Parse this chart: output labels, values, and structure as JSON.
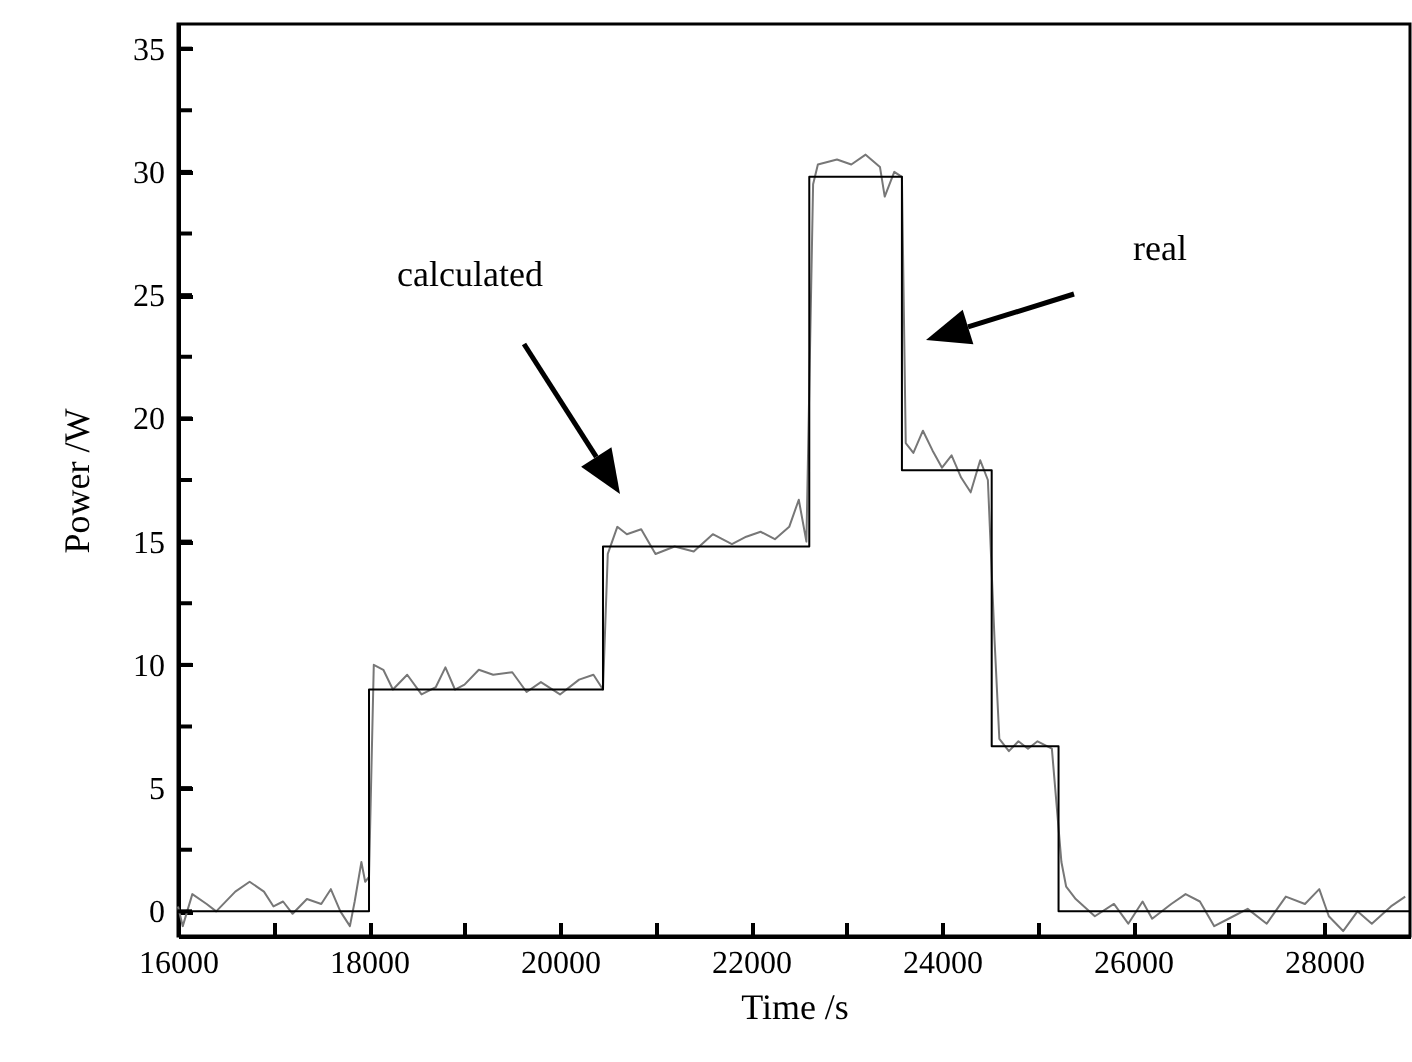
{
  "chart_data": {
    "type": "line",
    "xlabel": "Time /s",
    "ylabel": "Power /W",
    "xlim": [
      16000,
      28900
    ],
    "ylim": [
      -1,
      36
    ],
    "xticks": [
      16000,
      {
        "value": 17000,
        "label": null
      },
      18000,
      {
        "value": 19000,
        "label": null
      },
      20000,
      {
        "value": 21000,
        "label": null
      },
      22000,
      {
        "value": 23000,
        "label": null
      },
      24000,
      {
        "value": 25000,
        "label": null
      },
      26000,
      {
        "value": 27000,
        "label": null
      },
      28000
    ],
    "yticks": [
      0,
      {
        "value": 2.5,
        "label": null
      },
      5,
      {
        "value": 7.5,
        "label": null
      },
      10,
      {
        "value": 12.5,
        "label": null
      },
      15,
      {
        "value": 17.5,
        "label": null
      },
      20,
      {
        "value": 22.5,
        "label": null
      },
      25,
      {
        "value": 27.5,
        "label": null
      },
      30,
      {
        "value": 32.5,
        "label": null
      },
      35
    ],
    "grid": false,
    "marker": "none",
    "line_style": "solid",
    "series": [
      {
        "color": "#777777",
        "x": [
          16000,
          16050,
          16150,
          16300,
          16400,
          16600,
          16750,
          16900,
          17000,
          17100,
          17200,
          17350,
          17500,
          17600,
          17700,
          17800,
          17850,
          17920,
          17960,
          18000,
          18050,
          18150,
          18250,
          18400,
          18550,
          18700,
          18800,
          18900,
          19000,
          19150,
          19300,
          19500,
          19650,
          19800,
          20000,
          20200,
          20350,
          20450,
          20500,
          20600,
          20700,
          20850,
          21000,
          21200,
          21400,
          21600,
          21800,
          21950,
          22100,
          22250,
          22400,
          22500,
          22580,
          22650,
          22700,
          22900,
          23050,
          23200,
          23350,
          23400,
          23500,
          23580,
          23620,
          23700,
          23800,
          23900,
          24000,
          24100,
          24200,
          24300,
          24400,
          24480,
          24550,
          24600,
          24700,
          24800,
          24900,
          25000,
          25150,
          25250,
          25300,
          25400,
          25600,
          25800,
          25950,
          26100,
          26200,
          26400,
          26550,
          26700,
          26850,
          27000,
          27200,
          27400,
          27600,
          27800,
          27950,
          28050,
          28200,
          28350,
          28500,
          28700,
          28850
        ],
        "values": [
          0.2,
          -0.6,
          0.7,
          0.3,
          0,
          0.8,
          1.2,
          0.8,
          0.2,
          0.4,
          -0.1,
          0.5,
          0.3,
          0.9,
          0,
          -0.6,
          0.4,
          2,
          1.2,
          1.4,
          10,
          9.8,
          9,
          9.6,
          8.8,
          9.1,
          9.9,
          9,
          9.2,
          9.8,
          9.6,
          9.7,
          8.9,
          9.3,
          8.8,
          9.4,
          9.6,
          9,
          14.5,
          15.6,
          15.3,
          15.5,
          14.5,
          14.8,
          14.6,
          15.3,
          14.9,
          15.2,
          15.4,
          15.1,
          15.6,
          16.7,
          15,
          29.5,
          30.3,
          30.5,
          30.3,
          30.7,
          30.2,
          29,
          30,
          29.8,
          19,
          18.6,
          19.5,
          18.7,
          18,
          18.5,
          17.6,
          17,
          18.3,
          17.5,
          11,
          7,
          6.5,
          6.9,
          6.6,
          6.9,
          6.6,
          2,
          1,
          0.5,
          -0.2,
          0.3,
          -0.5,
          0.4,
          -0.3,
          0.3,
          0.7,
          0.4,
          -0.6,
          -0.3,
          0.1,
          -0.5,
          0.6,
          0.3,
          0.9,
          -0.2,
          -0.8,
          0,
          -0.5,
          0.2,
          0.6
        ]
      },
      {
        "type": "step",
        "color": "#000000",
        "x": [
          16000,
          18000,
          20450,
          22610,
          23580,
          24520,
          25220,
          28900
        ],
        "values": [
          0,
          9,
          14.8,
          29.8,
          17.9,
          6.7,
          0,
          0
        ]
      }
    ],
    "annotations": [
      "calculated",
      "real"
    ]
  }
}
